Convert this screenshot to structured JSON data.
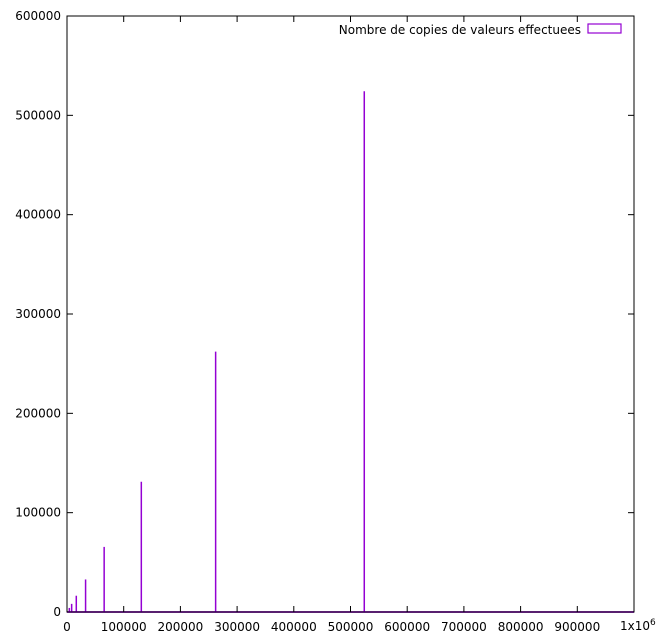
{
  "chart_data": {
    "type": "bar",
    "title": "",
    "xlabel": "",
    "ylabel": "",
    "xlim": [
      0,
      1000000
    ],
    "ylim": [
      0,
      600000
    ],
    "x_ticks": [
      0,
      100000,
      200000,
      300000,
      400000,
      500000,
      600000,
      700000,
      800000,
      900000
    ],
    "x_tick_labels": [
      "0",
      "100000",
      "200000",
      "300000",
      "400000",
      "500000",
      "600000",
      "700000",
      "800000",
      "900000"
    ],
    "x_multiplier": "1x10",
    "x_multiplier_exp": "6",
    "y_ticks": [
      0,
      100000,
      200000,
      300000,
      400000,
      500000,
      600000
    ],
    "y_tick_labels": [
      "0",
      "100000",
      "200000",
      "300000",
      "400000",
      "500000",
      "600000"
    ],
    "grid": false,
    "legend_position": "top-right",
    "series": [
      {
        "name": "Nombre de copies de valeurs effectuees",
        "color": "#9400d3",
        "points": [
          {
            "x": 4096,
            "y": 4096
          },
          {
            "x": 8192,
            "y": 8192
          },
          {
            "x": 16384,
            "y": 16384
          },
          {
            "x": 32768,
            "y": 32768
          },
          {
            "x": 65536,
            "y": 65536
          },
          {
            "x": 131072,
            "y": 131072
          },
          {
            "x": 262144,
            "y": 262144
          },
          {
            "x": 524288,
            "y": 524288
          }
        ]
      }
    ]
  }
}
